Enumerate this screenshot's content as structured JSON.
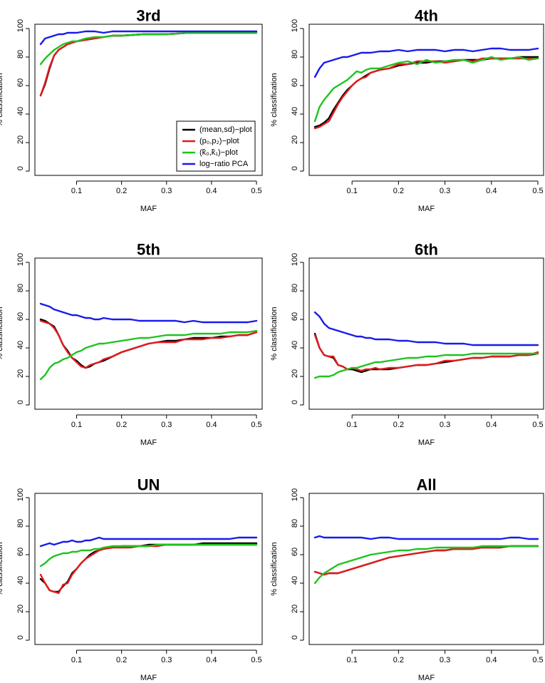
{
  "colors": {
    "mean_sd": "#000000",
    "p0_p2": "#e31a1c",
    "k0_k1": "#1ec31e",
    "pca": "#1a1aeb"
  },
  "legend": {
    "mean_sd": "(mean,sd)−plot",
    "p0_p2": "(p₀,p₂)−plot",
    "k0_k1": "(k̂₀,k̂₁)−plot",
    "pca": "log−ratio PCA"
  },
  "chart_data": [
    {
      "type": "line",
      "title": "3rd",
      "xlabel": "MAF",
      "ylabel": "% classification",
      "xlim": [
        0.02,
        0.5
      ],
      "ylim": [
        0,
        100
      ],
      "xticks": [
        "0.1",
        "0.2",
        "0.3",
        "0.4",
        "0.5"
      ],
      "yticks": [
        "0",
        "20",
        "40",
        "60",
        "80",
        "100"
      ],
      "legend_position": "bottom-right",
      "x": [
        0.02,
        0.03,
        0.04,
        0.05,
        0.06,
        0.07,
        0.08,
        0.09,
        0.1,
        0.12,
        0.14,
        0.16,
        0.18,
        0.2,
        0.25,
        0.3,
        0.35,
        0.4,
        0.45,
        0.5
      ],
      "series": [
        {
          "name": "mean_sd",
          "values": [
            53,
            61,
            72,
            81,
            85,
            87,
            89,
            90,
            91,
            92,
            93,
            94,
            95,
            95,
            96,
            96,
            97,
            97,
            97,
            97
          ]
        },
        {
          "name": "p0_p2",
          "values": [
            53,
            62,
            73,
            81,
            85,
            87,
            89,
            90,
            91,
            92,
            93,
            94,
            95,
            95,
            96,
            96,
            97,
            97,
            97,
            97
          ]
        },
        {
          "name": "k0_k1",
          "values": [
            75,
            79,
            82,
            85,
            87,
            89,
            90,
            91,
            91,
            93,
            94,
            94,
            95,
            95,
            96,
            96,
            97,
            97,
            97,
            97
          ]
        },
        {
          "name": "pca",
          "values": [
            89,
            93,
            94,
            95,
            96,
            96,
            97,
            97,
            97,
            98,
            98,
            97,
            98,
            98,
            98,
            98,
            98,
            98,
            98,
            98
          ]
        }
      ]
    },
    {
      "type": "line",
      "title": "4th",
      "xlabel": "MAF",
      "ylabel": "% classification",
      "xlim": [
        0.02,
        0.5
      ],
      "ylim": [
        0,
        100
      ],
      "xticks": [
        "0.1",
        "0.2",
        "0.3",
        "0.4",
        "0.5"
      ],
      "yticks": [
        "0",
        "20",
        "40",
        "60",
        "80",
        "100"
      ],
      "x": [
        0.02,
        0.03,
        0.04,
        0.05,
        0.06,
        0.07,
        0.08,
        0.09,
        0.1,
        0.11,
        0.12,
        0.13,
        0.14,
        0.16,
        0.18,
        0.2,
        0.22,
        0.24,
        0.26,
        0.28,
        0.3,
        0.32,
        0.34,
        0.36,
        0.38,
        0.4,
        0.42,
        0.44,
        0.46,
        0.48,
        0.5
      ],
      "series": [
        {
          "name": "mean_sd",
          "values": [
            31,
            32,
            34,
            37,
            43,
            48,
            53,
            57,
            60,
            63,
            65,
            67,
            69,
            71,
            72,
            74,
            75,
            76,
            76,
            77,
            77,
            77,
            78,
            78,
            78,
            79,
            79,
            79,
            80,
            80,
            80
          ]
        },
        {
          "name": "p0_p2",
          "values": [
            30,
            31,
            33,
            35,
            41,
            47,
            52,
            56,
            60,
            63,
            65,
            66,
            69,
            71,
            72,
            75,
            75,
            77,
            77,
            77,
            76,
            77,
            78,
            77,
            79,
            79,
            79,
            79,
            79,
            79,
            79
          ]
        },
        {
          "name": "k0_k1",
          "values": [
            35,
            45,
            50,
            54,
            58,
            60,
            62,
            64,
            67,
            70,
            69,
            71,
            72,
            72,
            74,
            76,
            77,
            75,
            78,
            76,
            77,
            78,
            78,
            76,
            78,
            80,
            78,
            79,
            80,
            78,
            79
          ]
        },
        {
          "name": "pca",
          "values": [
            66,
            72,
            76,
            77,
            78,
            79,
            80,
            80,
            81,
            82,
            83,
            83,
            83,
            84,
            84,
            85,
            84,
            85,
            85,
            85,
            84,
            85,
            85,
            84,
            85,
            86,
            86,
            85,
            85,
            85,
            86
          ]
        }
      ]
    },
    {
      "type": "line",
      "title": "5th",
      "xlabel": "MAF",
      "ylabel": "% classification",
      "xlim": [
        0.02,
        0.5
      ],
      "ylim": [
        0,
        100
      ],
      "xticks": [
        "0.1",
        "0.2",
        "0.3",
        "0.4",
        "0.5"
      ],
      "yticks": [
        "0",
        "20",
        "40",
        "60",
        "80",
        "100"
      ],
      "x": [
        0.02,
        0.03,
        0.04,
        0.05,
        0.06,
        0.07,
        0.08,
        0.09,
        0.1,
        0.11,
        0.12,
        0.13,
        0.14,
        0.15,
        0.16,
        0.18,
        0.2,
        0.22,
        0.24,
        0.26,
        0.28,
        0.3,
        0.32,
        0.34,
        0.36,
        0.38,
        0.4,
        0.42,
        0.44,
        0.46,
        0.48,
        0.5
      ],
      "series": [
        {
          "name": "mean_sd",
          "values": [
            60,
            59,
            57,
            55,
            49,
            42,
            38,
            33,
            31,
            28,
            26,
            27,
            29,
            30,
            31,
            34,
            37,
            39,
            41,
            43,
            44,
            45,
            45,
            46,
            47,
            47,
            47,
            48,
            48,
            49,
            49,
            51
          ]
        },
        {
          "name": "p0_p2",
          "values": [
            59,
            58,
            57,
            54,
            49,
            42,
            37,
            33,
            30,
            27,
            26,
            28,
            29,
            30,
            32,
            34,
            37,
            39,
            41,
            43,
            44,
            44,
            44,
            46,
            46,
            46,
            47,
            47,
            48,
            49,
            49,
            51
          ]
        },
        {
          "name": "k0_k1",
          "values": [
            18,
            21,
            26,
            29,
            30,
            32,
            33,
            35,
            37,
            38,
            40,
            41,
            42,
            43,
            43,
            44,
            45,
            46,
            47,
            47,
            48,
            49,
            49,
            49,
            50,
            50,
            50,
            50,
            51,
            51,
            51,
            52
          ]
        },
        {
          "name": "pca",
          "values": [
            71,
            70,
            69,
            67,
            66,
            65,
            64,
            63,
            63,
            62,
            61,
            61,
            60,
            60,
            61,
            60,
            60,
            60,
            59,
            59,
            59,
            59,
            59,
            58,
            59,
            58,
            58,
            58,
            58,
            58,
            58,
            59
          ]
        }
      ]
    },
    {
      "type": "line",
      "title": "6th",
      "xlabel": "MAF",
      "ylabel": "% classification",
      "xlim": [
        0.02,
        0.5
      ],
      "ylim": [
        0,
        100
      ],
      "xticks": [
        "0.1",
        "0.2",
        "0.3",
        "0.4",
        "0.5"
      ],
      "yticks": [
        "0",
        "20",
        "40",
        "60",
        "80",
        "100"
      ],
      "x": [
        0.02,
        0.03,
        0.04,
        0.05,
        0.06,
        0.07,
        0.08,
        0.09,
        0.1,
        0.11,
        0.12,
        0.13,
        0.14,
        0.15,
        0.16,
        0.18,
        0.2,
        0.22,
        0.24,
        0.26,
        0.28,
        0.3,
        0.32,
        0.34,
        0.36,
        0.38,
        0.4,
        0.42,
        0.44,
        0.46,
        0.48,
        0.5
      ],
      "series": [
        {
          "name": "mean_sd",
          "values": [
            50,
            40,
            35,
            34,
            33,
            28,
            27,
            25,
            25,
            24,
            23,
            24,
            25,
            25,
            25,
            25,
            26,
            27,
            28,
            28,
            29,
            30,
            31,
            32,
            33,
            33,
            34,
            34,
            34,
            35,
            35,
            36
          ]
        },
        {
          "name": "p0_p2",
          "values": [
            49,
            40,
            35,
            34,
            34,
            28,
            27,
            25,
            26,
            25,
            24,
            25,
            25,
            26,
            25,
            26,
            26,
            27,
            28,
            28,
            29,
            31,
            31,
            32,
            33,
            33,
            34,
            34,
            34,
            35,
            35,
            37
          ]
        },
        {
          "name": "k0_k1",
          "values": [
            19,
            20,
            20,
            20,
            21,
            23,
            24,
            25,
            26,
            26,
            27,
            28,
            29,
            30,
            30,
            31,
            32,
            33,
            33,
            34,
            34,
            35,
            35,
            35,
            36,
            36,
            36,
            36,
            36,
            36,
            36,
            36
          ]
        },
        {
          "name": "pca",
          "values": [
            65,
            62,
            57,
            54,
            53,
            52,
            51,
            50,
            49,
            48,
            48,
            47,
            47,
            46,
            46,
            46,
            45,
            45,
            44,
            44,
            44,
            43,
            43,
            43,
            42,
            42,
            42,
            42,
            42,
            42,
            42,
            42
          ]
        }
      ]
    },
    {
      "type": "line",
      "title": "UN",
      "xlabel": "MAF",
      "ylabel": "% classification",
      "xlim": [
        0.02,
        0.5
      ],
      "ylim": [
        0,
        100
      ],
      "xticks": [
        "0.1",
        "0.2",
        "0.3",
        "0.4",
        "0.5"
      ],
      "yticks": [
        "0",
        "20",
        "40",
        "60",
        "80",
        "100"
      ],
      "x": [
        0.02,
        0.03,
        0.04,
        0.05,
        0.06,
        0.07,
        0.08,
        0.09,
        0.1,
        0.11,
        0.12,
        0.13,
        0.14,
        0.15,
        0.16,
        0.18,
        0.2,
        0.22,
        0.24,
        0.26,
        0.28,
        0.3,
        0.32,
        0.34,
        0.36,
        0.38,
        0.4,
        0.42,
        0.44,
        0.46,
        0.48,
        0.5
      ],
      "series": [
        {
          "name": "mean_sd",
          "values": [
            43,
            40,
            35,
            34,
            34,
            38,
            41,
            47,
            50,
            54,
            57,
            60,
            62,
            63,
            64,
            65,
            66,
            66,
            66,
            67,
            67,
            67,
            67,
            67,
            67,
            68,
            68,
            68,
            68,
            68,
            68,
            68
          ]
        },
        {
          "name": "p0_p2",
          "values": [
            46,
            40,
            35,
            34,
            33,
            39,
            40,
            46,
            50,
            54,
            57,
            59,
            61,
            63,
            64,
            65,
            65,
            65,
            66,
            66,
            66,
            67,
            67,
            67,
            67,
            67,
            67,
            67,
            67,
            67,
            67,
            67
          ]
        },
        {
          "name": "k0_k1",
          "values": [
            52,
            54,
            57,
            59,
            60,
            61,
            61,
            62,
            62,
            63,
            63,
            63,
            64,
            64,
            65,
            66,
            66,
            66,
            66,
            66,
            67,
            67,
            67,
            67,
            67,
            67,
            67,
            67,
            67,
            67,
            67,
            67
          ]
        },
        {
          "name": "pca",
          "values": [
            66,
            67,
            68,
            67,
            68,
            69,
            69,
            70,
            69,
            69,
            70,
            70,
            71,
            72,
            71,
            71,
            71,
            71,
            71,
            71,
            71,
            71,
            71,
            71,
            71,
            71,
            71,
            71,
            71,
            72,
            72,
            72
          ]
        }
      ]
    },
    {
      "type": "line",
      "title": "All",
      "xlabel": "MAF",
      "ylabel": "% classification",
      "xlim": [
        0.02,
        0.5
      ],
      "ylim": [
        0,
        100
      ],
      "xticks": [
        "0.1",
        "0.2",
        "0.3",
        "0.4",
        "0.5"
      ],
      "yticks": [
        "0",
        "20",
        "40",
        "60",
        "80",
        "100"
      ],
      "x": [
        0.02,
        0.03,
        0.04,
        0.05,
        0.06,
        0.07,
        0.08,
        0.09,
        0.1,
        0.12,
        0.14,
        0.16,
        0.18,
        0.2,
        0.22,
        0.24,
        0.26,
        0.28,
        0.3,
        0.32,
        0.34,
        0.36,
        0.38,
        0.4,
        0.42,
        0.44,
        0.46,
        0.48,
        0.5
      ],
      "series": [
        {
          "name": "mean_sd",
          "values": [
            48,
            47,
            46,
            47,
            47,
            47,
            48,
            49,
            50,
            52,
            54,
            56,
            58,
            59,
            60,
            61,
            62,
            63,
            63,
            64,
            64,
            64,
            65,
            65,
            65,
            66,
            66,
            66,
            66
          ]
        },
        {
          "name": "p0_p2",
          "values": [
            48,
            47,
            46,
            47,
            47,
            47,
            48,
            49,
            50,
            52,
            54,
            56,
            58,
            59,
            60,
            61,
            62,
            63,
            63,
            64,
            64,
            64,
            65,
            65,
            65,
            66,
            66,
            66,
            66
          ]
        },
        {
          "name": "k0_k1",
          "values": [
            40,
            44,
            47,
            49,
            51,
            53,
            54,
            55,
            56,
            58,
            60,
            61,
            62,
            63,
            63,
            64,
            64,
            65,
            65,
            65,
            65,
            65,
            66,
            66,
            66,
            66,
            66,
            66,
            66
          ]
        },
        {
          "name": "pca",
          "values": [
            72,
            73,
            72,
            72,
            72,
            72,
            72,
            72,
            72,
            72,
            71,
            72,
            72,
            71,
            71,
            71,
            71,
            71,
            71,
            71,
            71,
            71,
            71,
            71,
            71,
            72,
            72,
            71,
            71
          ]
        }
      ]
    }
  ]
}
